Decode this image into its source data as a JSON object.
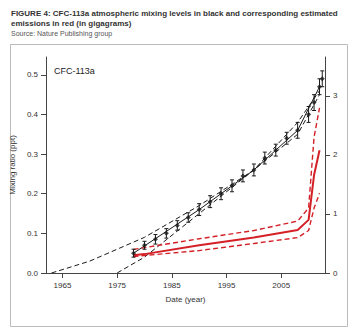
{
  "chart_data": {
    "type": "line",
    "title": "FIGURE 4: CFC-113a atmospheric mixing levels in black and corresponding estimated emissions in red (in gigagrams)",
    "subtitle": "Source: Nature Publishing group",
    "annotation": "CFC-113a",
    "x_label": "Date (year)",
    "y_label": "Mixing ratio (ppt)",
    "xlim": [
      1962,
      2013
    ],
    "xticks": [
      1965,
      1975,
      1985,
      1995,
      2005
    ],
    "ylim": [
      0,
      0.545
    ],
    "yticks": [
      {
        "value": 0,
        "label": "0.0"
      },
      0.1,
      0.2,
      0.3,
      0.4,
      0.5
    ],
    "y2lim": [
      0,
      3.66
    ],
    "y2ticks": [
      0,
      1,
      2,
      3
    ],
    "grid": false,
    "series": [
      {
        "type": "scatter",
        "color": "#1a1a1a",
        "marker": "diamond",
        "x": [
          1978,
          1980,
          1982,
          1984,
          1986,
          1988,
          1990,
          1992,
          1994,
          1996,
          1998,
          2000,
          2002,
          2004,
          2006,
          2008,
          2010,
          2011,
          2012,
          2012.5
        ],
        "values": [
          0.05,
          0.07,
          0.085,
          0.1,
          0.12,
          0.14,
          0.16,
          0.18,
          0.2,
          0.22,
          0.245,
          0.26,
          0.29,
          0.31,
          0.34,
          0.36,
          0.4,
          0.43,
          0.47,
          0.49
        ],
        "errors": [
          0.01,
          0.01,
          0.012,
          0.012,
          0.012,
          0.012,
          0.015,
          0.015,
          0.015,
          0.015,
          0.015,
          0.015,
          0.015,
          0.015,
          0.015,
          0.02,
          0.02,
          0.02,
          0.02,
          0.02
        ]
      },
      {
        "type": "line",
        "color": "#1a1a1a",
        "line_style": "solid",
        "x": [
          1978,
          1990,
          2000,
          2008,
          2012
        ],
        "values": [
          0.05,
          0.16,
          0.26,
          0.36,
          0.47
        ]
      },
      {
        "type": "line",
        "color": "#1a1a1a",
        "line_style": "dashed",
        "x": [
          1963,
          1970,
          1980,
          1990,
          2000,
          2008,
          2012
        ],
        "values": [
          0.0,
          0.03,
          0.09,
          0.17,
          0.26,
          0.35,
          0.45
        ]
      },
      {
        "type": "line",
        "color": "#1a1a1a",
        "line_style": "dashed",
        "x": [
          1975,
          1980,
          1990,
          2000,
          2008,
          2012
        ],
        "values": [
          0.0,
          0.04,
          0.15,
          0.26,
          0.38,
          0.46
        ]
      },
      {
        "type": "line",
        "color": "#d42027",
        "line_style": "solid",
        "axis": "y2",
        "x": [
          1978,
          1980,
          1990,
          2000,
          2008,
          2010,
          2011,
          2012
        ],
        "values": [
          0.3,
          0.32,
          0.47,
          0.6,
          0.73,
          0.9,
          1.66,
          2.08
        ]
      },
      {
        "type": "line",
        "color": "#d42027",
        "line_style": "dashed",
        "axis": "y2",
        "x": [
          1978,
          1990,
          2000,
          2008,
          2010,
          2011,
          2012
        ],
        "values": [
          0.4,
          0.58,
          0.72,
          0.88,
          1.1,
          2.3,
          2.8
        ]
      },
      {
        "type": "line",
        "color": "#d42027",
        "line_style": "dashed",
        "axis": "y2",
        "x": [
          1978,
          1990,
          2000,
          2008,
          2010,
          2011,
          2012
        ],
        "values": [
          0.28,
          0.38,
          0.5,
          0.6,
          0.72,
          1.1,
          1.35
        ]
      }
    ]
  }
}
